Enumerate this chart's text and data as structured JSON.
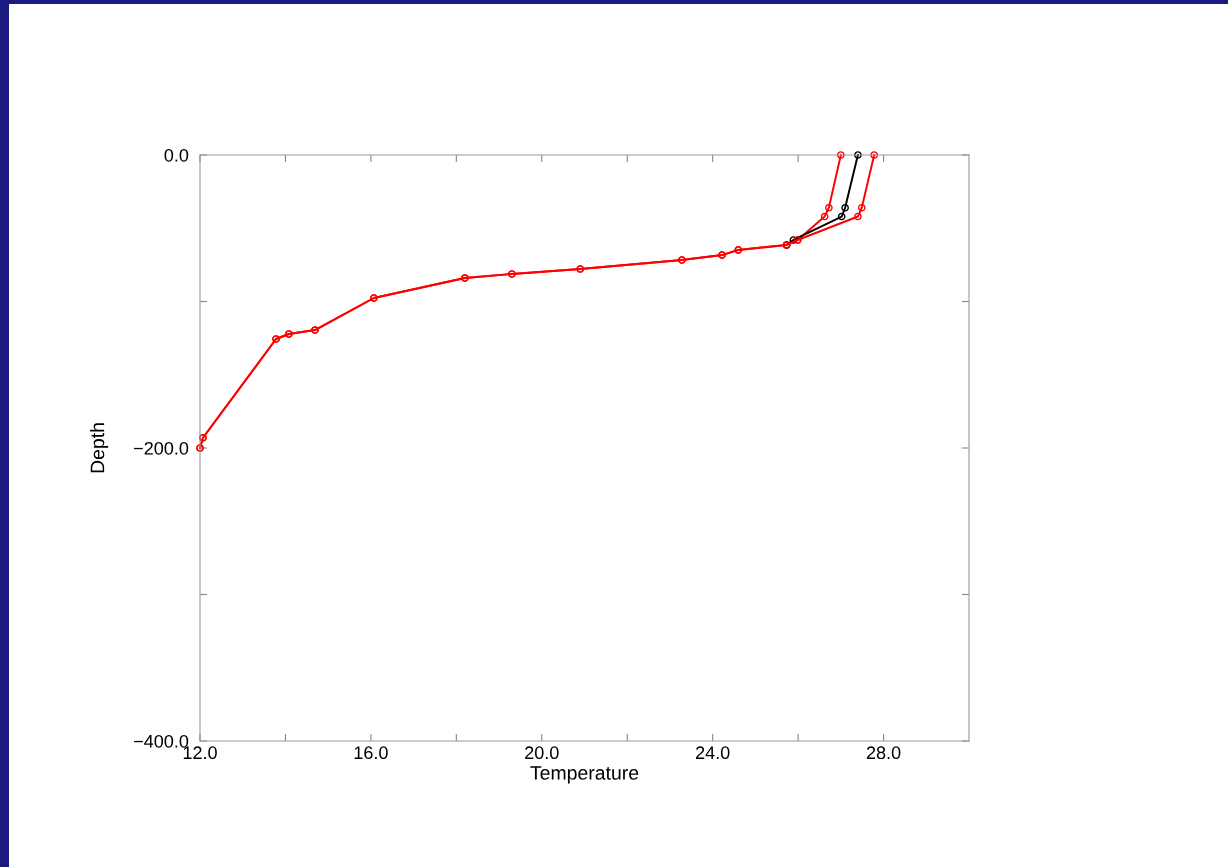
{
  "chart_data": {
    "type": "line",
    "xlabel": "Temperature",
    "ylabel": "Depth",
    "xlim": [
      12,
      30
    ],
    "ylim": [
      -400,
      0
    ],
    "xticks": [
      {
        "value": 12,
        "label": "12.0"
      },
      {
        "value": 14,
        "label": null
      },
      {
        "value": 16,
        "label": "16.0"
      },
      {
        "value": 18,
        "label": null
      },
      {
        "value": 20,
        "label": "20.0"
      },
      {
        "value": 22,
        "label": null
      },
      {
        "value": 24,
        "label": "24.0"
      },
      {
        "value": 26,
        "label": null
      },
      {
        "value": 28,
        "label": "28.0"
      }
    ],
    "yticks": [
      {
        "value": -400,
        "label": "−400.0"
      },
      {
        "value": -300,
        "label": null
      },
      {
        "value": -200,
        "label": "−200.0"
      },
      {
        "value": -100,
        "label": null
      },
      {
        "value": 0,
        "label": "0.0"
      }
    ],
    "marker": "circle",
    "line_style": "solid",
    "grid": false,
    "series": [
      {
        "color": "#ff0000",
        "x": [
          27.0,
          26.72,
          26.62,
          25.99,
          25.73,
          24.6,
          24.22,
          23.28,
          20.9,
          19.3,
          18.2,
          16.07,
          14.69,
          14.08,
          13.78,
          12.07,
          12.0
        ],
        "values": [
          0,
          -36,
          -42,
          -58,
          -61.4,
          -64.8,
          -68.3,
          -71.7,
          -77.8,
          -81.2,
          -84,
          -97.6,
          -119.5,
          -122.2,
          -125.6,
          -193,
          -200
        ]
      },
      {
        "color": "#000000",
        "x": [
          27.4,
          27.1,
          27.02,
          25.89,
          25.73
        ],
        "values": [
          0,
          -36,
          -42,
          -58,
          -61.4
        ]
      },
      {
        "color": "#ff0000",
        "x": [
          27.78,
          27.49,
          27.4,
          25.99,
          25.73,
          24.6,
          24.22,
          23.28,
          20.9,
          19.3,
          18.2,
          16.07,
          14.69,
          14.08,
          13.78,
          12.07,
          12.0
        ],
        "values": [
          0,
          -36,
          -42,
          -58,
          -61.4,
          -64.8,
          -68.3,
          -71.7,
          -77.8,
          -81.2,
          -84,
          -97.6,
          -119.5,
          -122.2,
          -125.6,
          -193,
          -200
        ]
      }
    ]
  }
}
